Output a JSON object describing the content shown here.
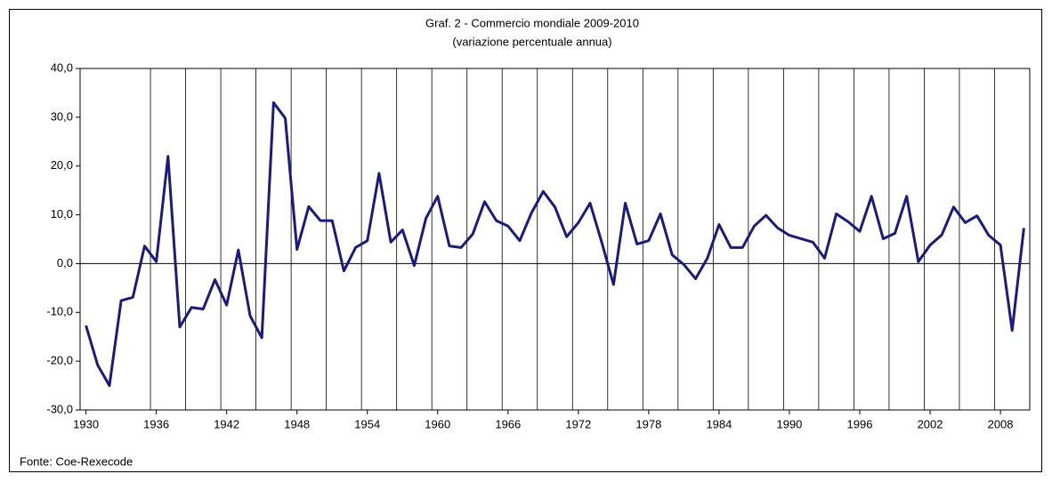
{
  "chart_data": {
    "type": "line",
    "title": "Graf. 2 - Commercio mondiale 2009-2010",
    "subtitle": "(variazione percentuale annua)",
    "source": "Fonte: Coe-Rexecode",
    "categories": [
      "1930",
      null,
      null,
      null,
      null,
      null,
      "1936",
      null,
      null,
      null,
      null,
      null,
      "1942",
      null,
      null,
      null,
      null,
      null,
      "1948",
      null,
      null,
      null,
      null,
      null,
      "1954",
      null,
      null,
      null,
      null,
      null,
      "1960",
      null,
      null,
      null,
      null,
      null,
      "1966",
      null,
      null,
      null,
      null,
      null,
      "1972",
      null,
      null,
      null,
      null,
      null,
      "1978",
      null,
      null,
      null,
      null,
      null,
      "1984",
      null,
      null,
      null,
      null,
      null,
      "1990",
      null,
      null,
      null,
      null,
      null,
      "1996",
      null,
      null,
      null,
      null,
      null,
      "2002",
      null,
      null,
      null,
      null,
      null,
      "2008",
      null,
      null
    ],
    "series": [
      {
        "color": "#1a1a80",
        "values": [
          -12.7,
          -20.8,
          -25,
          -7.6,
          -6.9,
          3.6,
          0.4,
          22,
          -13,
          -9,
          -9.3,
          -3.3,
          -8.5,
          2.8,
          -10.7,
          -15.2,
          33,
          29.8,
          2.9,
          11.7,
          8.8,
          8.8,
          -1.5,
          3.3,
          4.7,
          18.5,
          4.4,
          6.9,
          -0.4,
          9.3,
          13.8,
          3.6,
          3.3,
          6.1,
          12.7,
          8.8,
          7.7,
          4.7,
          10.4,
          14.8,
          11.6,
          5.5,
          8.4,
          12.4,
          4.3,
          -4.3,
          12.4,
          4.0,
          4.7,
          10.2,
          1.8,
          -0.2,
          -3.1,
          1.1,
          8.0,
          3.3,
          3.3,
          7.7,
          9.9,
          7.3,
          5.8,
          5.1,
          4.4,
          1.1,
          10.2,
          8.6,
          6.6,
          13.8,
          5.1,
          6.2,
          13.8,
          0.4,
          3.8,
          5.9,
          11.6,
          8.4,
          9.8,
          5.8,
          3.8,
          -13.7,
          7.3
        ]
      }
    ],
    "ylim": [
      -30,
      40
    ],
    "yticks": [
      {
        "value": -30,
        "label": "-30,0"
      },
      {
        "value": -20,
        "label": "-20,0"
      },
      {
        "value": -10,
        "label": "-10,0"
      },
      {
        "value": 0,
        "label": "0,0"
      },
      {
        "value": 10,
        "label": "10,0"
      },
      {
        "value": 20,
        "label": "20,0"
      },
      {
        "value": 30,
        "label": "30,0"
      },
      {
        "value": 40,
        "label": "40,0"
      }
    ],
    "grid": true
  }
}
